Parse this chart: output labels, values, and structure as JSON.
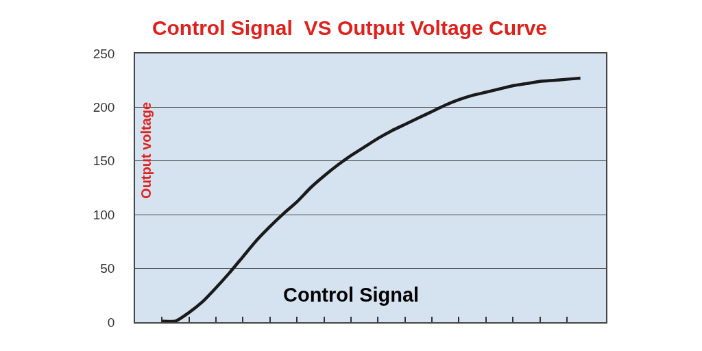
{
  "chart_data": {
    "type": "line",
    "title": "Control Signal  VS Output Voltage Curve",
    "xlabel": "Control Signal",
    "ylabel": "Output voltage",
    "categories": [
      null,
      null,
      null,
      null,
      null,
      null,
      null,
      null,
      null,
      null,
      null,
      null,
      null,
      null,
      null,
      null,
      null,
      null,
      null,
      null,
      null,
      null,
      null,
      null,
      null,
      null,
      null,
      null,
      null,
      null,
      null,
      null
    ],
    "series": [
      {
        "color": "#1a1a1a",
        "values": [
          1,
          1,
          9,
          19,
          32,
          46,
          61,
          76,
          89,
          101,
          112,
          125,
          136,
          146,
          155,
          163,
          171,
          178,
          184,
          190,
          196,
          202,
          207,
          211,
          214,
          217,
          220,
          222,
          224,
          225,
          226,
          227
        ]
      }
    ],
    "ylim": [
      0,
      250
    ],
    "yticks": [
      0,
      50,
      100,
      150,
      200,
      250
    ],
    "grid": "y",
    "tick_labels": "y",
    "line_style": "solid"
  }
}
